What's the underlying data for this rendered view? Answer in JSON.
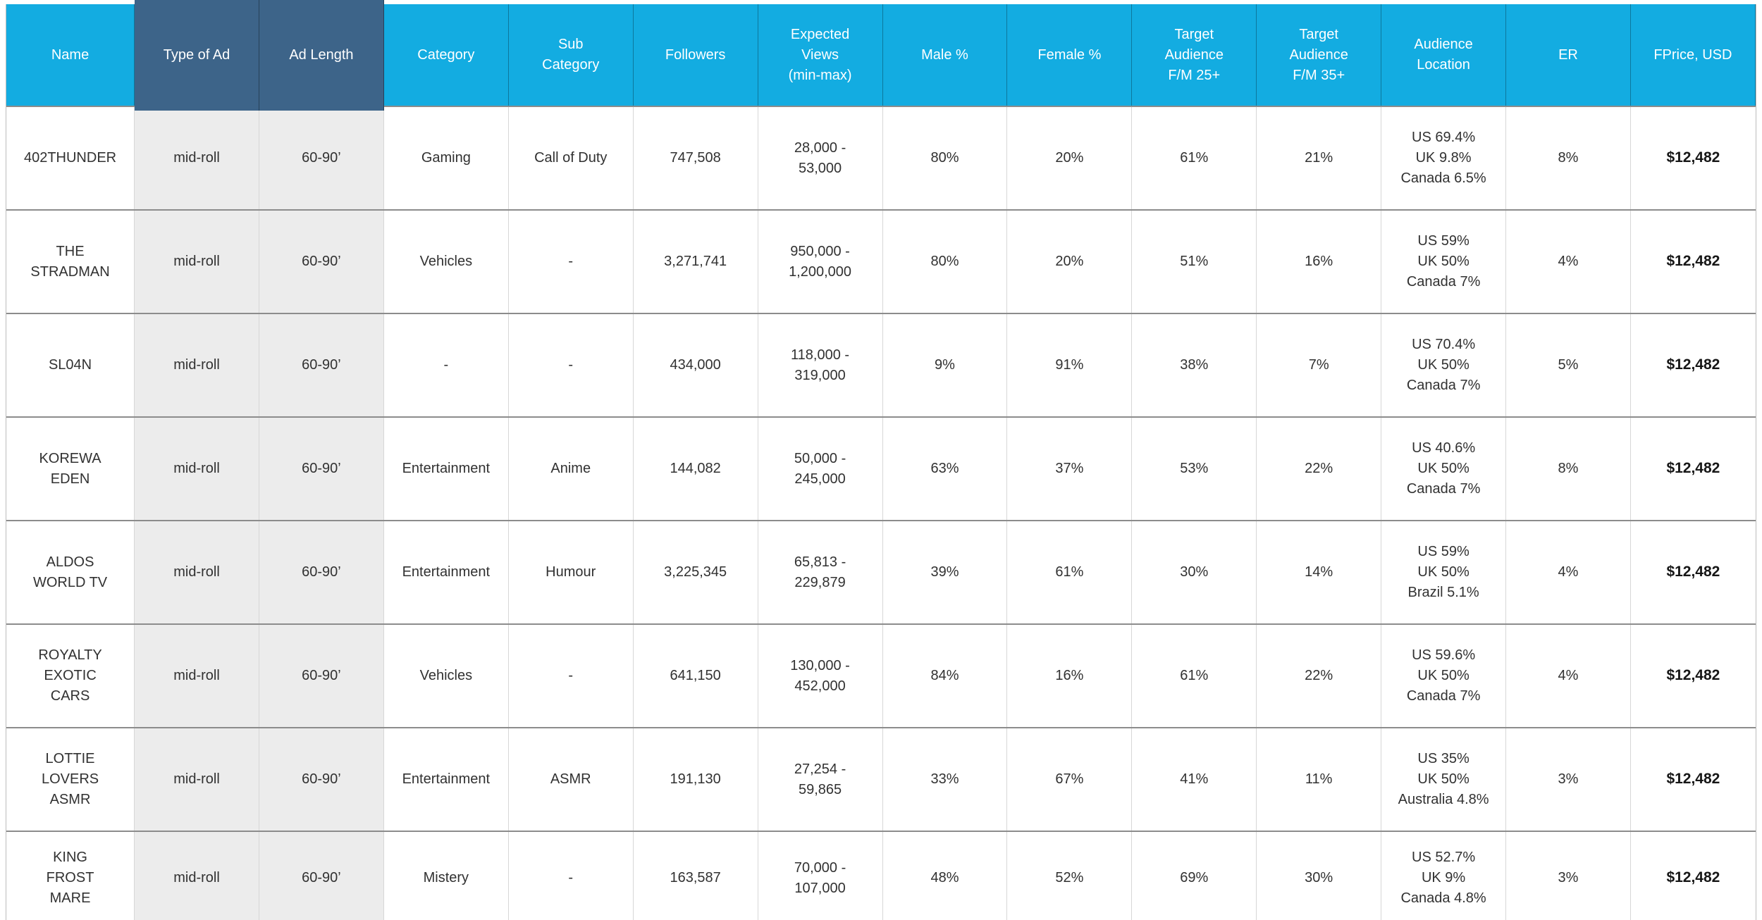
{
  "colors": {
    "header_blue": "#13ACE1",
    "header_dark_blue": "#3D6489",
    "highlight_column_gray": "#ECECEC"
  },
  "table": {
    "columns": [
      {
        "key": "name",
        "label": "Name",
        "highlight": false
      },
      {
        "key": "type_of_ad",
        "label": "Type of Ad",
        "highlight": true
      },
      {
        "key": "ad_length",
        "label": "Ad Length",
        "highlight": true
      },
      {
        "key": "category",
        "label": "Category",
        "highlight": false
      },
      {
        "key": "sub_category",
        "label": "Sub\nCategory",
        "highlight": false
      },
      {
        "key": "followers",
        "label": "Followers",
        "highlight": false
      },
      {
        "key": "expected_views",
        "label": "Expected\nViews\n(min-max)",
        "highlight": false
      },
      {
        "key": "male_pct",
        "label": "Male %",
        "highlight": false
      },
      {
        "key": "female_pct",
        "label": "Female %",
        "highlight": false
      },
      {
        "key": "target_25",
        "label": "Target\nAudience\nF/M 25+",
        "highlight": false
      },
      {
        "key": "target_35",
        "label": "Target\nAudience\nF/M 35+",
        "highlight": false
      },
      {
        "key": "audience_location",
        "label": "Audience\nLocation",
        "highlight": false
      },
      {
        "key": "er",
        "label": "ER",
        "highlight": false
      },
      {
        "key": "price",
        "label": "FPrice, USD",
        "highlight": false
      }
    ],
    "rows": [
      {
        "name": "402THUNDER",
        "type_of_ad": "mid-roll",
        "ad_length": "60-90’",
        "category": "Gaming",
        "sub_category": "Call of Duty",
        "followers": "747,508",
        "expected_views": "28,000 -\n53,000",
        "male_pct": "80%",
        "female_pct": "20%",
        "target_25": "61%",
        "target_35": "21%",
        "audience_location": "US 69.4%\nUK 9.8%\nCanada 6.5%",
        "er": "8%",
        "price": "$12,482"
      },
      {
        "name": "THE\nSTRADMAN",
        "type_of_ad": "mid-roll",
        "ad_length": "60-90’",
        "category": "Vehicles",
        "sub_category": "-",
        "followers": "3,271,741",
        "expected_views": "950,000 -\n1,200,000",
        "male_pct": "80%",
        "female_pct": "20%",
        "target_25": "51%",
        "target_35": "16%",
        "audience_location": "US 59%\nUK 50%\nCanada 7%",
        "er": "4%",
        "price": "$12,482"
      },
      {
        "name": "SL04N",
        "type_of_ad": "mid-roll",
        "ad_length": "60-90’",
        "category": "-",
        "sub_category": "-",
        "followers": "434,000",
        "expected_views": "118,000 -\n319,000",
        "male_pct": "9%",
        "female_pct": "91%",
        "target_25": "38%",
        "target_35": "7%",
        "audience_location": "US 70.4%\nUK 50%\nCanada 7%",
        "er": "5%",
        "price": "$12,482"
      },
      {
        "name": "KOREWA\nEDEN",
        "type_of_ad": "mid-roll",
        "ad_length": "60-90’",
        "category": "Entertainment",
        "sub_category": "Anime",
        "followers": "144,082",
        "expected_views": "50,000 -\n245,000",
        "male_pct": "63%",
        "female_pct": "37%",
        "target_25": "53%",
        "target_35": "22%",
        "audience_location": "US 40.6%\nUK 50%\nCanada 7%",
        "er": "8%",
        "price": "$12,482"
      },
      {
        "name": "ALDOS\nWORLD TV",
        "type_of_ad": "mid-roll",
        "ad_length": "60-90’",
        "category": "Entertainment",
        "sub_category": "Humour",
        "followers": "3,225,345",
        "expected_views": "65,813 -\n229,879",
        "male_pct": "39%",
        "female_pct": "61%",
        "target_25": "30%",
        "target_35": "14%",
        "audience_location": "US 59%\nUK 50%\nBrazil 5.1%",
        "er": "4%",
        "price": "$12,482"
      },
      {
        "name": "ROYALTY\nEXOTIC\nCARS",
        "type_of_ad": "mid-roll",
        "ad_length": "60-90’",
        "category": "Vehicles",
        "sub_category": "-",
        "followers": "641,150",
        "expected_views": "130,000 -\n452,000",
        "male_pct": "84%",
        "female_pct": "16%",
        "target_25": "61%",
        "target_35": "22%",
        "audience_location": "US 59.6%\nUK 50%\nCanada 7%",
        "er": "4%",
        "price": "$12,482"
      },
      {
        "name": "LOTTIE\nLOVERS\nASMR",
        "type_of_ad": "mid-roll",
        "ad_length": "60-90’",
        "category": "Entertainment",
        "sub_category": "ASMR",
        "followers": "191,130",
        "expected_views": "27,254 -\n59,865",
        "male_pct": "33%",
        "female_pct": "67%",
        "target_25": "41%",
        "target_35": "11%",
        "audience_location": "US 35%\nUK 50%\nAustralia 4.8%",
        "er": "3%",
        "price": "$12,482"
      },
      {
        "name": "KING\nFROST\nMARE",
        "type_of_ad": "mid-roll",
        "ad_length": "60-90’",
        "category": "Mistery",
        "sub_category": "-",
        "followers": "163,587",
        "expected_views": "70,000 -\n107,000",
        "male_pct": "48%",
        "female_pct": "52%",
        "target_25": "69%",
        "target_35": "30%",
        "audience_location": "US 52.7%\nUK 9%\nCanada 4.8%",
        "er": "3%",
        "price": "$12,482"
      }
    ]
  }
}
